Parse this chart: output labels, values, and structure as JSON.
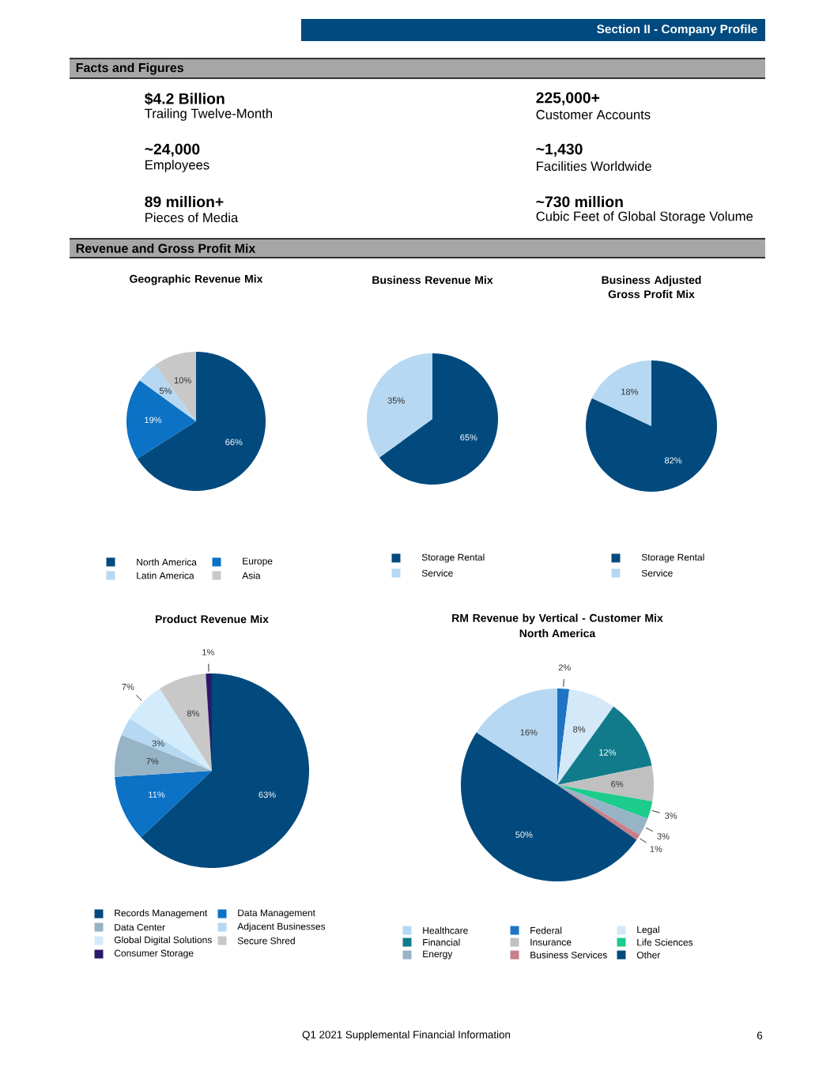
{
  "chart_data": [
    {
      "type": "other",
      "title": "Facts and Figures",
      "annotations": [
        "Section II - Company Profile",
        "$4.2 Billion",
        "Trailing Twelve-Month",
        "225,000+",
        "Customer Accounts",
        "~24,000",
        "Employees",
        "~1,430",
        "Facilities Worldwide",
        "89 million+",
        "Pieces of Media",
        "~730 million",
        "Cubic Feet of Global Storage Volume"
      ]
    },
    {
      "type": "other",
      "title": "Revenue and Gross Profit Mix",
      "annotations": [
        "Q1 2021 Supplemental Financial Information",
        "6"
      ]
    },
    {
      "type": "pie",
      "title": "Geographic Revenue Mix",
      "categories": [
        "North America",
        "Europe",
        "Latin America",
        "Asia"
      ],
      "values": [
        66,
        19,
        5,
        10
      ],
      "colors": [
        "#024a7d",
        "#0b72c6",
        "#b6d8f2",
        "#c8c8c8"
      ],
      "value_labels": [
        "66%",
        "19%",
        "5%",
        "10%"
      ],
      "legend": "bottom"
    },
    {
      "type": "pie",
      "title": "Business Revenue Mix",
      "categories": [
        "Storage Rental",
        "Service"
      ],
      "values": [
        65,
        35
      ],
      "colors": [
        "#024a7d",
        "#b6d8f2"
      ],
      "value_labels": [
        "65%",
        "35%"
      ],
      "legend": "bottom"
    },
    {
      "type": "pie",
      "title": "Business Adjusted Gross Profit Mix",
      "categories": [
        "Storage Rental",
        "Service"
      ],
      "values": [
        82,
        18
      ],
      "colors": [
        "#024a7d",
        "#b6d8f2"
      ],
      "value_labels": [
        "82%",
        "18%"
      ],
      "legend": "bottom"
    },
    {
      "type": "pie",
      "title": "Product Revenue Mix",
      "categories": [
        "Records Management",
        "Data Management",
        "Data Center",
        "Adjacent Businesses",
        "Global Digital Solutions",
        "Secure Shred",
        "Consumer Storage"
      ],
      "values": [
        63,
        11,
        7,
        3,
        7,
        8,
        1
      ],
      "colors": [
        "#024a7d",
        "#0b72c6",
        "#97b3c6",
        "#b6d8f2",
        "#d3ecfb",
        "#c8c8c8",
        "#2b1a6b"
      ],
      "value_labels": [
        "63%",
        "11%",
        "7%",
        "3%",
        "7%",
        "8%",
        "1%"
      ],
      "legend": "bottom"
    },
    {
      "type": "pie",
      "title": "RM Revenue by Vertical - Customer Mix",
      "subtitle": "North America",
      "categories": [
        "Federal",
        "Legal",
        "Financial",
        "Insurance",
        "Life Sciences",
        "Energy",
        "Business Services",
        "Other",
        "Healthcare"
      ],
      "values": [
        2,
        8,
        12,
        6,
        3,
        3,
        1,
        50,
        16
      ],
      "colors": [
        "#1f74c6",
        "#d3e8f8",
        "#117b8c",
        "#c0c0c0",
        "#1ccc8c",
        "#97b3c6",
        "#c9808b",
        "#024a7d",
        "#b6d8f2"
      ],
      "value_labels": [
        "2%",
        "8%",
        "12%",
        "6%",
        "3%",
        "3%",
        "1%",
        "50%",
        "16%"
      ],
      "legend": "bottom"
    }
  ]
}
